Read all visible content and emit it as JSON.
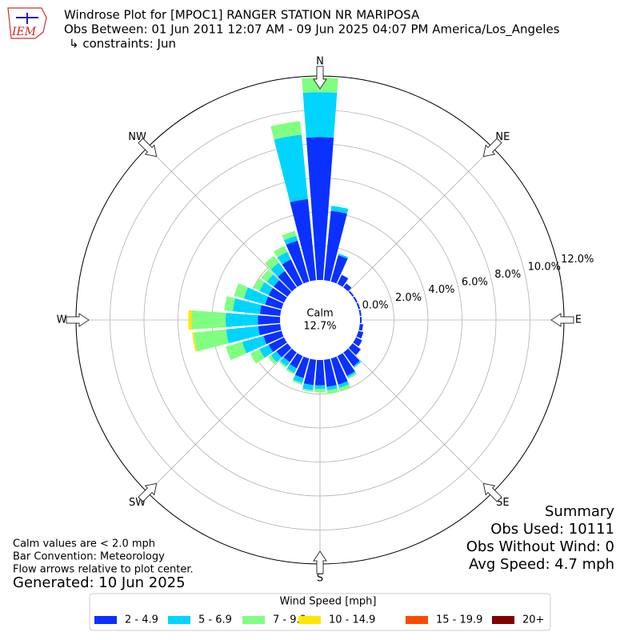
{
  "chart_data": {
    "type": "windrose",
    "logo": "IEM",
    "title": "Windrose Plot for [MPOC1] RANGER STATION NR MARIPOSA",
    "subtitle": "Obs Between: 01 Jun 2011 12:07 AM - 09 Jun 2025 04:07 PM America/Los_Angeles",
    "constraints": "↳ constraints: Jun",
    "compass_labels": [
      "N",
      "NE",
      "E",
      "SE",
      "S",
      "SW",
      "W",
      "NW"
    ],
    "x": [
      0,
      10,
      20,
      30,
      40,
      50,
      60,
      70,
      80,
      90,
      100,
      110,
      120,
      130,
      140,
      150,
      160,
      170,
      180,
      190,
      200,
      210,
      220,
      230,
      240,
      250,
      260,
      270,
      280,
      290,
      300,
      310,
      320,
      330,
      340,
      350
    ],
    "rlim": [
      0,
      12
    ],
    "rticks": [
      {
        "value": 0,
        "label": "0.0%"
      },
      {
        "value": 2,
        "label": "2.0%"
      },
      {
        "value": 4,
        "label": "4.0%"
      },
      {
        "value": 6,
        "label": "6.0%"
      },
      {
        "value": 8,
        "label": "8.0%"
      },
      {
        "value": 10,
        "label": "10.0%"
      },
      {
        "value": 12,
        "label": "12.0%"
      }
    ],
    "calm": {
      "label": "Calm",
      "value": 12.7,
      "value_label": "12.7%"
    },
    "legend_title": "Wind Speed [mph]",
    "series": [
      {
        "name": "2 - 4.9",
        "color": "#0a31ff",
        "values": [
          8.4,
          4.1,
          1.6,
          0.6,
          0.3,
          0.1,
          0.1,
          0.1,
          0.1,
          0.1,
          0.2,
          0.3,
          0.4,
          0.6,
          1.0,
          1.3,
          1.6,
          1.6,
          1.5,
          1.5,
          1.2,
          0.8,
          0.7,
          0.8,
          1.0,
          1.1,
          1.3,
          1.3,
          1.2,
          1.0,
          1.0,
          1.0,
          1.2,
          1.6,
          2.5,
          4.8
        ]
      },
      {
        "name": "5 - 6.9",
        "color": "#00d4ff",
        "values": [
          2.65,
          0.3,
          0.1,
          0,
          0,
          0,
          0,
          0,
          0,
          0,
          0,
          0,
          0,
          0,
          0.1,
          0.1,
          0.2,
          0.2,
          0.2,
          0.3,
          0.3,
          0.3,
          0.3,
          0.4,
          0.6,
          1.3,
          1.9,
          1.9,
          1.6,
          1.3,
          0.6,
          0.5,
          0.6,
          0.5,
          0.3,
          3.8
        ]
      },
      {
        "name": "7 - 9.9",
        "color": "#80ff80",
        "values": [
          0.85,
          0,
          0,
          0,
          0,
          0,
          0,
          0,
          0,
          0,
          0,
          0,
          0,
          0,
          0,
          0.1,
          0.2,
          0.2,
          0.2,
          0.1,
          0.1,
          0.1,
          0.1,
          0.2,
          0.6,
          1.0,
          1.9,
          2.0,
          0.5,
          0.6,
          0.4,
          0.4,
          0.5,
          0.4,
          0.3,
          0.8
        ]
      },
      {
        "name": "10 - 14.9",
        "color": "#ffe600",
        "values": [
          0,
          0,
          0,
          0,
          0,
          0,
          0,
          0,
          0,
          0,
          0,
          0,
          0,
          0,
          0,
          0,
          0,
          0,
          0,
          0,
          0,
          0,
          0,
          0,
          0,
          0,
          0.1,
          0.2,
          0,
          0,
          0,
          0,
          0,
          0,
          0,
          0
        ]
      },
      {
        "name": "15 - 19.9",
        "color": "#ff4a00",
        "values": [
          0,
          0,
          0,
          0,
          0,
          0,
          0,
          0,
          0,
          0,
          0,
          0,
          0,
          0,
          0,
          0,
          0,
          0,
          0,
          0,
          0,
          0,
          0,
          0,
          0,
          0,
          0,
          0,
          0,
          0,
          0,
          0,
          0,
          0,
          0,
          0
        ]
      },
      {
        "name": "20+",
        "color": "#800000",
        "values": [
          0,
          0,
          0,
          0,
          0,
          0,
          0,
          0,
          0,
          0,
          0,
          0,
          0,
          0,
          0,
          0,
          0,
          0,
          0,
          0,
          0,
          0,
          0,
          0,
          0,
          0,
          0,
          0,
          0,
          0,
          0,
          0,
          0,
          0,
          0,
          0
        ]
      }
    ],
    "summary": [
      "Summary",
      "Obs Used: 10111",
      "Obs Without Wind: 0",
      "Avg Speed: 4.7 mph"
    ],
    "notes": [
      "Calm values are < 2.0 mph",
      "Bar Convention: Meteorology",
      "Flow arrows relative to plot center."
    ],
    "generated": "Generated: 10 Jun 2025"
  }
}
